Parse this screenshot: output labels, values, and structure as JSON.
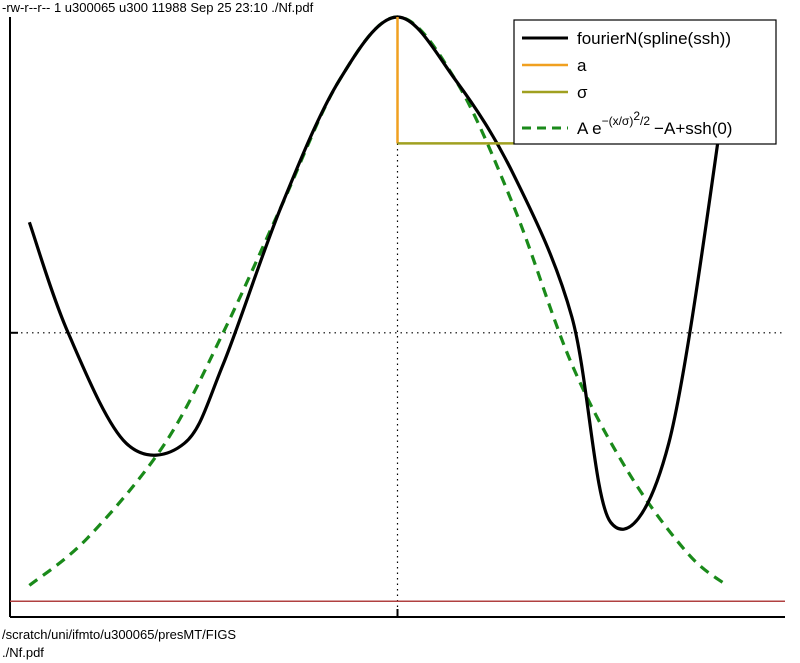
{
  "header": {
    "file_listing": "-rw-r--r-- 1 u300065 u300 11988 Sep 25 23:10 ./Nf.pdf",
    "path_line": "/scratch/uni/ifmto/u300065/presMT/FIGS",
    "file_line": "./Nf.pdf"
  },
  "colors": {
    "fourier": "#000000",
    "a": "#f0a020",
    "sigma": "#a0a020",
    "gauss": "#1a8a1a",
    "baseline": "#b04040",
    "zero_line": "#000000"
  },
  "chart_data": {
    "type": "line",
    "title": "",
    "xlabel": "",
    "ylabel": "",
    "xlim": [
      -1,
      1
    ],
    "ylim": [
      -0.9,
      1.0
    ],
    "grid": false,
    "legend_position": "top-right",
    "series": [
      {
        "name": "fourierN(spline(ssh))",
        "x": [
          -0.95,
          -0.85,
          -0.7,
          -0.55,
          -0.45,
          -0.3,
          -0.15,
          0.0,
          0.15,
          0.3,
          0.45,
          0.55,
          0.7,
          0.85
        ],
        "y": [
          0.35,
          0.0,
          -0.35,
          -0.35,
          -0.1,
          0.4,
          0.8,
          1.0,
          0.8,
          0.5,
          0.05,
          -0.6,
          -0.35,
          0.8
        ]
      },
      {
        "name": "a",
        "x": [
          0.0,
          0.0
        ],
        "y": [
          1.0,
          0.6
        ]
      },
      {
        "name": "σ",
        "x": [
          0.0,
          0.3
        ],
        "y": [
          0.6,
          0.6
        ]
      },
      {
        "name": "A e^{-(x/σ)^2/2} −A+ssh(0)",
        "x": [
          -0.95,
          -0.8,
          -0.6,
          -0.45,
          -0.3,
          -0.15,
          0.0,
          0.15,
          0.3,
          0.45,
          0.6,
          0.75,
          0.85
        ],
        "y": [
          -0.8,
          -0.65,
          -0.35,
          0.0,
          0.4,
          0.8,
          1.0,
          0.8,
          0.4,
          -0.1,
          -0.45,
          -0.7,
          -0.8
        ]
      }
    ],
    "reference_lines": [
      {
        "kind": "horizontal",
        "y": 0.0,
        "style": "dotted"
      },
      {
        "kind": "vertical",
        "x": 0.0,
        "style": "dotted"
      },
      {
        "kind": "horizontal",
        "y": -0.85,
        "style": "solid"
      }
    ],
    "legend": [
      {
        "label": "fourierN(spline(ssh))",
        "style": "solid"
      },
      {
        "label": "a",
        "style": "solid"
      },
      {
        "label": "σ",
        "style": "solid"
      },
      {
        "label": "A e",
        "exponent": "−(x/σ)",
        "exponent2": "2",
        "exponent3": "/2",
        "suffix": "−A+ssh(0)",
        "style": "dashed"
      }
    ]
  }
}
